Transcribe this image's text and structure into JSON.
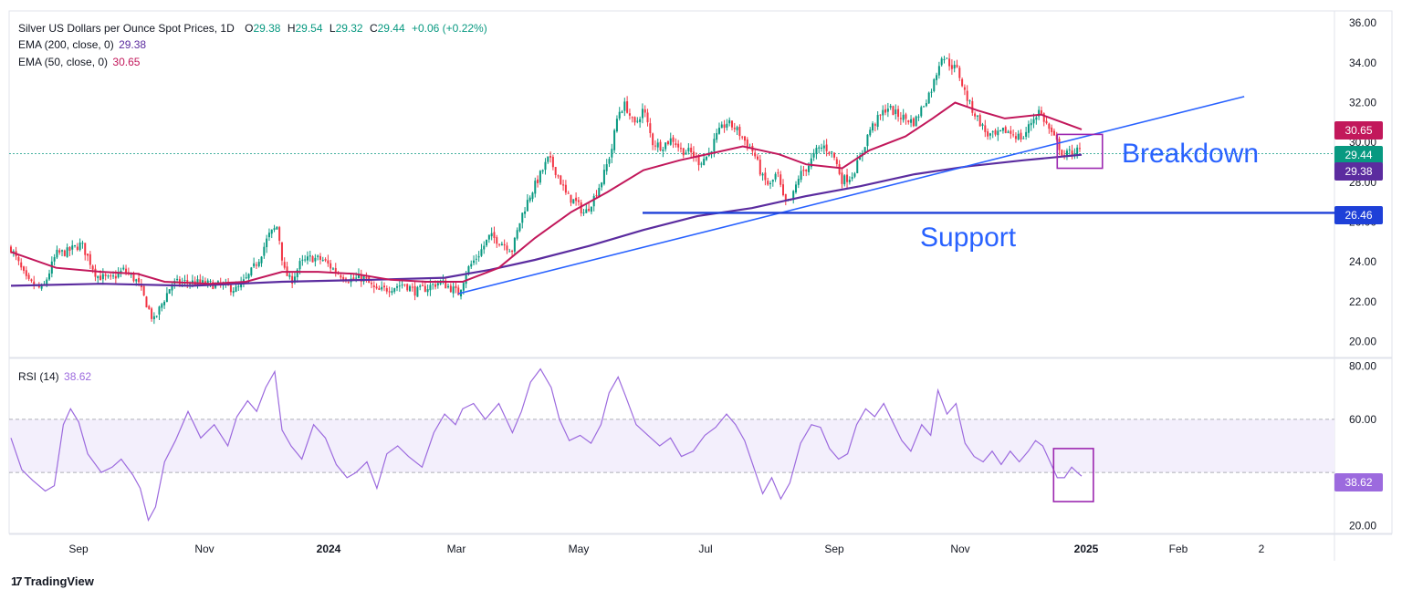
{
  "header": {
    "title": "Silver US Dollars per Ounce Spot Prices, 1D",
    "open_label": "O",
    "open": "29.38",
    "high_label": "H",
    "high": "29.54",
    "low_label": "L",
    "low": "29.32",
    "close_label": "C",
    "close": "29.44",
    "change": "+0.06 (+0.22%)",
    "ema200_label": "EMA (200, close, 0)",
    "ema200_value": "29.38",
    "ema50_label": "EMA (50, close, 0)",
    "ema50_value": "30.65",
    "rsi_label": "RSI (14)",
    "rsi_value": "38.62"
  },
  "brand": {
    "name": "TradingView"
  },
  "price_labels": {
    "ema50": "30.65",
    "close": "29.44",
    "ema200": "29.38",
    "support": "26.46",
    "rsi": "38.62"
  },
  "annotations": {
    "breakdown": "Breakdown",
    "support": "Support"
  },
  "colors": {
    "up": "#089981",
    "down": "#f23645",
    "ema50": "#c2185b",
    "ema200": "#5b2c9f",
    "trend": "#2962ff",
    "rsi": "#9c6ade",
    "box": "#9c27b0",
    "support_label": "#1e40d8"
  },
  "chart_data": [
    {
      "type": "candlestick",
      "title": "Silver US Dollars per Ounce Spot Prices, 1D",
      "ylim": [
        19.2,
        36.6
      ],
      "yticks": [
        "36.00",
        "34.00",
        "32.00",
        "30.00",
        "28.00",
        "26.00",
        "24.00",
        "22.00",
        "20.00"
      ],
      "x_ticks": [
        "Sep",
        "Nov",
        "2024",
        "Mar",
        "May",
        "Jul",
        "Sep",
        "Nov",
        "2025",
        "Feb",
        "2"
      ],
      "x_ticks_note": "time axis from Aug 2023 to Mar 2025",
      "close_path": [
        [
          0,
          24.7
        ],
        [
          18,
          23.0
        ],
        [
          35,
          22.6
        ],
        [
          50,
          24.4
        ],
        [
          62,
          24.5
        ],
        [
          78,
          24.9
        ],
        [
          95,
          23.3
        ],
        [
          110,
          23.1
        ],
        [
          125,
          23.6
        ],
        [
          140,
          23.0
        ],
        [
          150,
          21.9
        ],
        [
          158,
          21.0
        ],
        [
          165,
          21.7
        ],
        [
          178,
          22.9
        ],
        [
          195,
          23.0
        ],
        [
          215,
          22.9
        ],
        [
          235,
          22.8
        ],
        [
          250,
          22.6
        ],
        [
          262,
          23.2
        ],
        [
          275,
          24.2
        ],
        [
          285,
          25.3
        ],
        [
          295,
          25.8
        ],
        [
          302,
          23.6
        ],
        [
          310,
          23.0
        ],
        [
          320,
          23.9
        ],
        [
          332,
          24.2
        ],
        [
          345,
          24.1
        ],
        [
          360,
          23.5
        ],
        [
          375,
          23.1
        ],
        [
          390,
          23.2
        ],
        [
          405,
          22.5
        ],
        [
          420,
          22.7
        ],
        [
          435,
          22.9
        ],
        [
          448,
          22.5
        ],
        [
          460,
          22.7
        ],
        [
          475,
          23.0
        ],
        [
          490,
          22.6
        ],
        [
          495,
          22.4
        ],
        [
          505,
          23.6
        ],
        [
          518,
          24.4
        ],
        [
          530,
          25.3
        ],
        [
          542,
          25.0
        ],
        [
          555,
          24.6
        ],
        [
          565,
          26.3
        ],
        [
          575,
          27.4
        ],
        [
          585,
          28.3
        ],
        [
          595,
          29.2
        ],
        [
          605,
          28.4
        ],
        [
          615,
          27.3
        ],
        [
          625,
          27.0
        ],
        [
          635,
          26.4
        ],
        [
          645,
          27.2
        ],
        [
          655,
          28.2
        ],
        [
          665,
          29.7
        ],
        [
          672,
          31.5
        ],
        [
          680,
          31.9
        ],
        [
          690,
          30.8
        ],
        [
          700,
          31.7
        ],
        [
          710,
          30.0
        ],
        [
          720,
          29.8
        ],
        [
          732,
          30.2
        ],
        [
          742,
          29.6
        ],
        [
          752,
          29.5
        ],
        [
          762,
          29.0
        ],
        [
          772,
          29.4
        ],
        [
          782,
          30.4
        ],
        [
          792,
          31.0
        ],
        [
          802,
          30.7
        ],
        [
          812,
          30.1
        ],
        [
          822,
          29.5
        ],
        [
          832,
          28.2
        ],
        [
          840,
          27.8
        ],
        [
          848,
          28.5
        ],
        [
          856,
          26.9
        ],
        [
          864,
          27.1
        ],
        [
          872,
          28.3
        ],
        [
          882,
          28.8
        ],
        [
          892,
          29.6
        ],
        [
          900,
          29.8
        ],
        [
          910,
          29.4
        ],
        [
          920,
          28.1
        ],
        [
          930,
          28.3
        ],
        [
          940,
          29.2
        ],
        [
          950,
          30.6
        ],
        [
          960,
          31.2
        ],
        [
          970,
          31.8
        ],
        [
          980,
          31.4
        ],
        [
          990,
          31.2
        ],
        [
          1000,
          31.0
        ],
        [
          1010,
          31.9
        ],
        [
          1020,
          32.8
        ],
        [
          1030,
          34.4
        ],
        [
          1040,
          33.9
        ],
        [
          1048,
          33.6
        ],
        [
          1055,
          32.6
        ],
        [
          1062,
          31.8
        ],
        [
          1070,
          31.2
        ],
        [
          1080,
          30.4
        ],
        [
          1090,
          30.3
        ],
        [
          1100,
          30.6
        ],
        [
          1110,
          30.4
        ],
        [
          1120,
          30.2
        ],
        [
          1130,
          31.1
        ],
        [
          1138,
          31.6
        ],
        [
          1145,
          31.0
        ],
        [
          1152,
          30.4
        ],
        [
          1160,
          29.8
        ],
        [
          1165,
          29.3
        ],
        [
          1172,
          29.5
        ],
        [
          1180,
          29.6
        ],
        [
          1185,
          29.44
        ]
      ],
      "ema50_path": [
        [
          0,
          24.5
        ],
        [
          50,
          23.7
        ],
        [
          100,
          23.5
        ],
        [
          140,
          23.4
        ],
        [
          170,
          23.0
        ],
        [
          220,
          22.9
        ],
        [
          260,
          23.0
        ],
        [
          300,
          23.5
        ],
        [
          340,
          23.5
        ],
        [
          380,
          23.4
        ],
        [
          420,
          23.1
        ],
        [
          460,
          23.0
        ],
        [
          500,
          23.0
        ],
        [
          540,
          23.7
        ],
        [
          580,
          25.2
        ],
        [
          620,
          26.5
        ],
        [
          660,
          27.5
        ],
        [
          700,
          28.6
        ],
        [
          740,
          29.1
        ],
        [
          780,
          29.5
        ],
        [
          810,
          29.8
        ],
        [
          850,
          29.4
        ],
        [
          880,
          28.9
        ],
        [
          920,
          28.7
        ],
        [
          950,
          29.6
        ],
        [
          990,
          30.3
        ],
        [
          1020,
          31.2
        ],
        [
          1045,
          32.0
        ],
        [
          1070,
          31.6
        ],
        [
          1100,
          31.2
        ],
        [
          1140,
          31.4
        ],
        [
          1185,
          30.65
        ]
      ],
      "ema200_path": [
        [
          0,
          22.8
        ],
        [
          100,
          22.9
        ],
        [
          200,
          22.8
        ],
        [
          300,
          23.0
        ],
        [
          400,
          23.1
        ],
        [
          480,
          23.2
        ],
        [
          530,
          23.6
        ],
        [
          580,
          24.1
        ],
        [
          640,
          24.8
        ],
        [
          700,
          25.6
        ],
        [
          760,
          26.3
        ],
        [
          820,
          26.7
        ],
        [
          880,
          27.3
        ],
        [
          940,
          27.8
        ],
        [
          1000,
          28.4
        ],
        [
          1060,
          28.8
        ],
        [
          1120,
          29.1
        ],
        [
          1185,
          29.38
        ]
      ],
      "trendline": {
        "from": [
          495,
          22.4
        ],
        "to": [
          1365,
          32.3
        ]
      },
      "support": 26.46,
      "breakdown_box": {
        "x": [
          1158,
          1208
        ],
        "y": [
          28.7,
          30.4
        ]
      },
      "annotations": [
        "Breakdown",
        "Support"
      ]
    },
    {
      "type": "line",
      "title": "RSI (14)",
      "ylim": [
        17,
        83
      ],
      "yticks": [
        "80.00",
        "60.00",
        "20.00"
      ],
      "bands": [
        40,
        60
      ],
      "path": [
        [
          0,
          53
        ],
        [
          12,
          41
        ],
        [
          24,
          37
        ],
        [
          38,
          33
        ],
        [
          48,
          35
        ],
        [
          58,
          58
        ],
        [
          66,
          64
        ],
        [
          75,
          59
        ],
        [
          85,
          47
        ],
        [
          100,
          40
        ],
        [
          112,
          42
        ],
        [
          122,
          45
        ],
        [
          135,
          39
        ],
        [
          143,
          34
        ],
        [
          152,
          22
        ],
        [
          160,
          27
        ],
        [
          170,
          44
        ],
        [
          182,
          52
        ],
        [
          196,
          63
        ],
        [
          210,
          53
        ],
        [
          225,
          58
        ],
        [
          240,
          50
        ],
        [
          250,
          61
        ],
        [
          262,
          67
        ],
        [
          272,
          63
        ],
        [
          282,
          72
        ],
        [
          292,
          78
        ],
        [
          300,
          56
        ],
        [
          310,
          50
        ],
        [
          322,
          45
        ],
        [
          335,
          58
        ],
        [
          348,
          53
        ],
        [
          360,
          43
        ],
        [
          372,
          38
        ],
        [
          382,
          40
        ],
        [
          394,
          44
        ],
        [
          405,
          34
        ],
        [
          416,
          47
        ],
        [
          428,
          50
        ],
        [
          440,
          46
        ],
        [
          455,
          42
        ],
        [
          468,
          55
        ],
        [
          480,
          62
        ],
        [
          492,
          58
        ],
        [
          500,
          64
        ],
        [
          512,
          66
        ],
        [
          525,
          60
        ],
        [
          540,
          66
        ],
        [
          555,
          55
        ],
        [
          565,
          63
        ],
        [
          575,
          74
        ],
        [
          586,
          79
        ],
        [
          598,
          72
        ],
        [
          607,
          60
        ],
        [
          618,
          52
        ],
        [
          630,
          54
        ],
        [
          642,
          51
        ],
        [
          653,
          58
        ],
        [
          662,
          70
        ],
        [
          672,
          76
        ],
        [
          680,
          69
        ],
        [
          692,
          58
        ],
        [
          705,
          54
        ],
        [
          718,
          50
        ],
        [
          730,
          53
        ],
        [
          742,
          46
        ],
        [
          755,
          48
        ],
        [
          768,
          54
        ],
        [
          780,
          57
        ],
        [
          792,
          62
        ],
        [
          802,
          58
        ],
        [
          812,
          52
        ],
        [
          822,
          42
        ],
        [
          832,
          32
        ],
        [
          842,
          38
        ],
        [
          852,
          30
        ],
        [
          862,
          36
        ],
        [
          874,
          51
        ],
        [
          886,
          58
        ],
        [
          896,
          57
        ],
        [
          906,
          49
        ],
        [
          916,
          45
        ],
        [
          926,
          47
        ],
        [
          936,
          58
        ],
        [
          946,
          64
        ],
        [
          956,
          61
        ],
        [
          966,
          66
        ],
        [
          976,
          59
        ],
        [
          986,
          52
        ],
        [
          996,
          48
        ],
        [
          1008,
          58
        ],
        [
          1018,
          54
        ],
        [
          1026,
          71
        ],
        [
          1036,
          62
        ],
        [
          1046,
          66
        ],
        [
          1056,
          51
        ],
        [
          1066,
          46
        ],
        [
          1076,
          44
        ],
        [
          1086,
          48
        ],
        [
          1096,
          43
        ],
        [
          1106,
          48
        ],
        [
          1116,
          44
        ],
        [
          1126,
          48
        ],
        [
          1134,
          52
        ],
        [
          1142,
          50
        ],
        [
          1150,
          44
        ],
        [
          1158,
          38
        ],
        [
          1166,
          38
        ],
        [
          1174,
          42
        ],
        [
          1180,
          40
        ],
        [
          1185,
          38.62
        ]
      ],
      "rsi_box": {
        "x": [
          1154,
          1198
        ],
        "y": [
          29,
          49
        ]
      }
    }
  ]
}
